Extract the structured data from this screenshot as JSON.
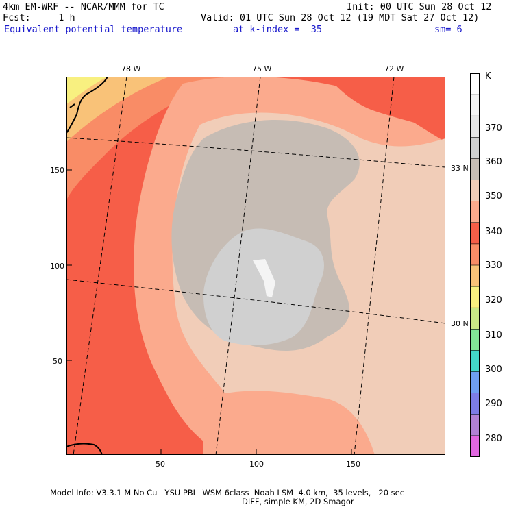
{
  "header": {
    "line1_left": "4km EM-WRF -- NCAR/MMM for TC",
    "line1_right": "Init: 00 UTC Sun 28 Oct 12",
    "line2_left": "Fcst:     1 h",
    "line2_right": "Valid: 01 UTC Sun 28 Oct 12 (19 MDT Sat 27 Oct 12)",
    "field_name": "Equivalent potential temperature",
    "level": "at k-index =  35",
    "smoothing": "sm= 6"
  },
  "map": {
    "top_lon_labels": [
      "78 W",
      "75 W",
      "72 W"
    ],
    "right_lat_labels": [
      "33 N",
      "30 N"
    ],
    "x_ticks": [
      "50",
      "100",
      "150"
    ],
    "y_ticks": [
      "150",
      "100",
      "50"
    ]
  },
  "colorbar": {
    "unit": "K",
    "labels": [
      "370",
      "360",
      "350",
      "340",
      "330",
      "320",
      "310",
      "300",
      "290",
      "280"
    ],
    "colors": [
      "#ffffff",
      "#f4f4f4",
      "#e6e6e6",
      "#d0d0d0",
      "#c6bcb4",
      "#f1cdb8",
      "#fbaa8d",
      "#f65e48",
      "#f98c66",
      "#f9c278",
      "#f8f080",
      "#c8e886",
      "#82e696",
      "#43d8c8",
      "#6f9ef2",
      "#7c7ce6",
      "#b081d4",
      "#df66df"
    ]
  },
  "footer": {
    "line1": "Model Info: V3.3.1 M No Cu   YSU PBL  WSM 6class  Noah LSM  4.0 km,  35 levels,   20 sec",
    "line2": "DIFF, simple KM, 2D Smagor"
  }
}
